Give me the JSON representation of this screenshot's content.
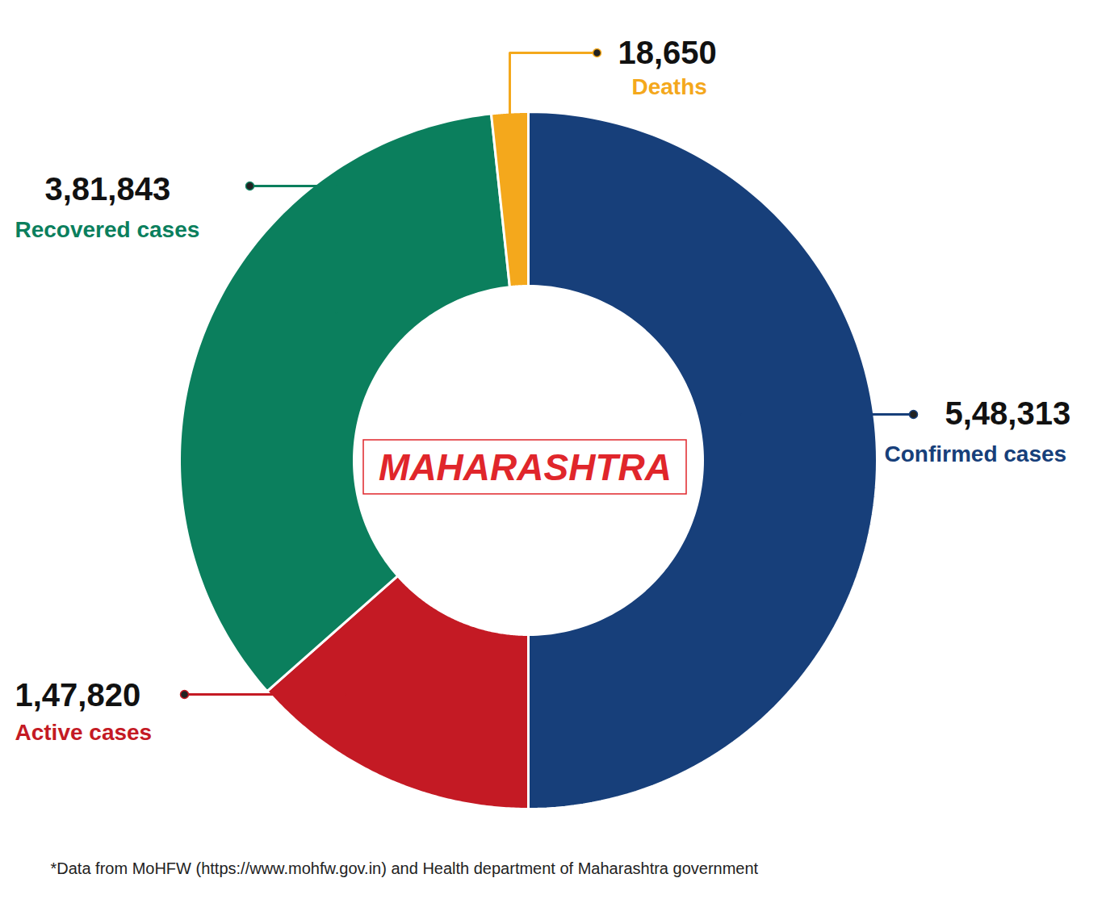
{
  "chart_data": {
    "type": "donut",
    "categories": [
      "Confirmed cases",
      "Active cases",
      "Recovered cases",
      "Deaths"
    ],
    "values": [
      548313,
      147820,
      381843,
      18650
    ],
    "value_labels": [
      "5,48,313",
      "1,47,820",
      "3,81,843",
      "18,650"
    ],
    "colors": [
      "#173f7a",
      "#c41a24",
      "#0b7f5d",
      "#f4a81c"
    ],
    "data_labels": true,
    "center_text": "MAHARASHTRA",
    "footnote": "*Data from MoHFW (https://www.mohfw.gov.in) and Health department of Maharashtra government"
  }
}
